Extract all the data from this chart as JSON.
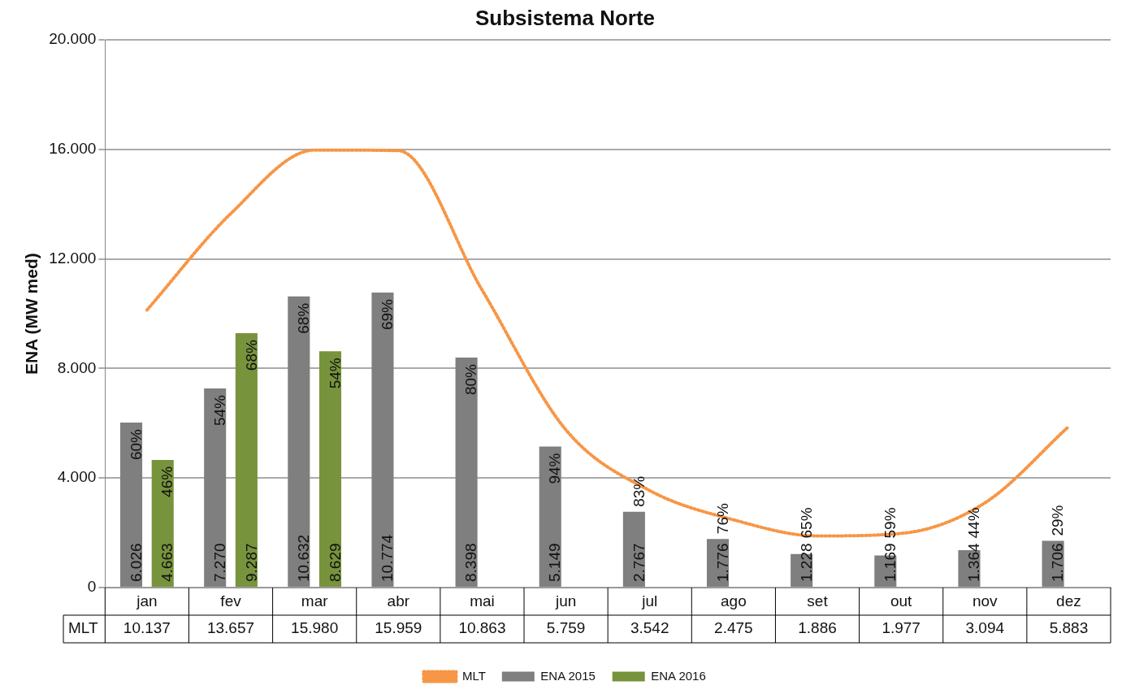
{
  "chart_data": {
    "type": "bar",
    "title": "Subsistema Norte",
    "ylabel": "ENA (MW med)",
    "categories": [
      "jan",
      "fev",
      "mar",
      "abr",
      "mai",
      "jun",
      "jul",
      "ago",
      "set",
      "out",
      "nov",
      "dez"
    ],
    "series": [
      {
        "name": "MLT",
        "type": "line",
        "color": "#f79646",
        "line_style": "dotted",
        "marker": "none",
        "values": [
          10137,
          13657,
          15980,
          15959,
          10863,
          5759,
          3542,
          2475,
          1886,
          1977,
          3094,
          5883
        ],
        "value_labels": [
          "10.137",
          "13.657",
          "15.980",
          "15.959",
          "10.863",
          "5.759",
          "3.542",
          "2.475",
          "1.886",
          "1.977",
          "3.094",
          "5.883"
        ]
      },
      {
        "name": "ENA 2015",
        "color": "#7f7f7f",
        "values": [
          6026,
          7270,
          10632,
          10774,
          8398,
          5149,
          2767,
          1776,
          1228,
          1169,
          1364,
          1706
        ],
        "value_labels": [
          "6.026",
          "7.270",
          "10.632",
          "10.774",
          "8.398",
          "5.149",
          "2.767",
          "1.776",
          "1.228",
          "1.169",
          "1.364",
          "1.706"
        ]
      },
      {
        "name": "ENA 2016",
        "color": "#77933c",
        "values": [
          4663,
          9287,
          8629,
          null,
          null,
          null,
          null,
          null,
          null,
          null,
          null,
          null
        ],
        "value_labels": [
          "4.663",
          "9.287",
          "8.629",
          null,
          null,
          null,
          null,
          null,
          null,
          null,
          null,
          null
        ]
      }
    ],
    "ylim": [
      0,
      20000
    ],
    "yticks": [
      {
        "value": 0,
        "label": "0"
      },
      {
        "value": 4000,
        "label": "4.000"
      },
      {
        "value": 8000,
        "label": "8.000"
      },
      {
        "value": 12000,
        "label": "12.000"
      },
      {
        "value": 16000,
        "label": "16.000"
      },
      {
        "value": 20000,
        "label": "20.000"
      }
    ],
    "grid": "y",
    "legend": "bottom",
    "annotations": [
      "60%",
      "46%",
      "54%",
      "68%",
      "68%",
      "54%",
      "69%",
      "80%",
      "94%",
      "83%",
      "76%",
      "65%",
      "59%",
      "44%",
      "29%"
    ]
  }
}
